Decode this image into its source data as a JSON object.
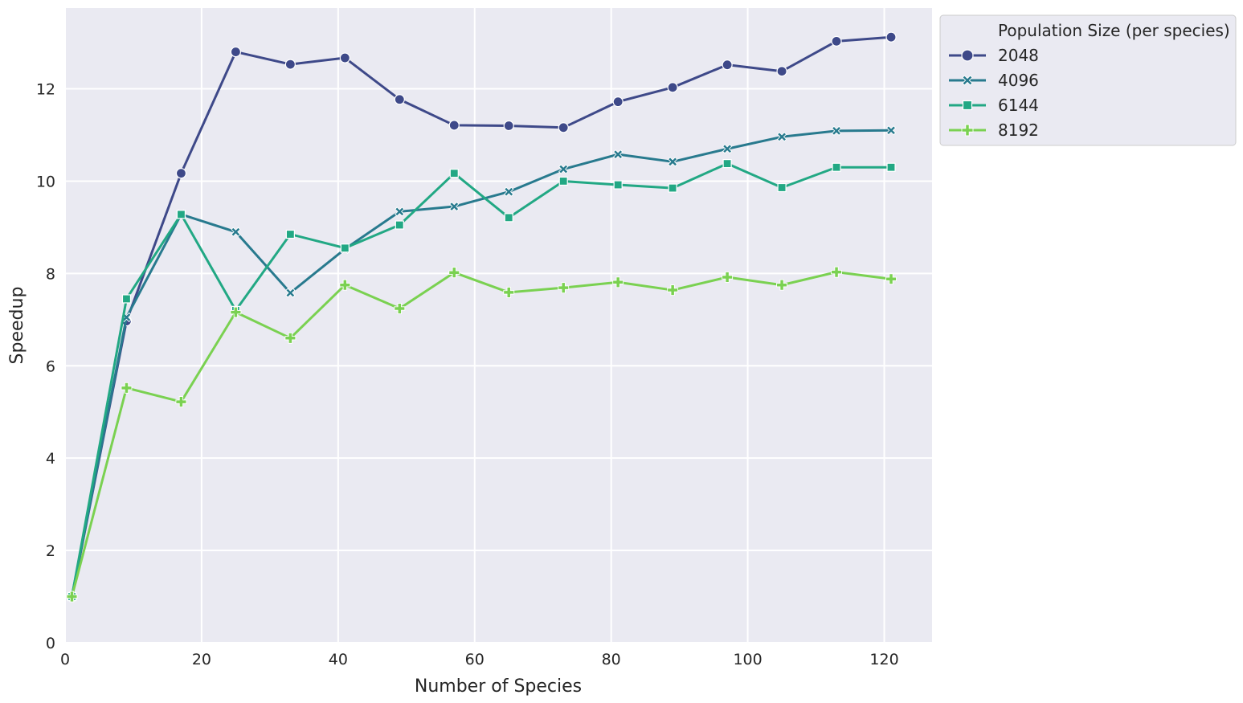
{
  "chart_data": {
    "type": "line",
    "title": "",
    "xlabel": "Number of Species",
    "ylabel": "Speedup",
    "xlim": [
      0,
      127
    ],
    "ylim": [
      0,
      13.75
    ],
    "x_ticks": [
      0,
      20,
      40,
      60,
      80,
      100,
      120
    ],
    "y_ticks": [
      0,
      2,
      4,
      6,
      8,
      10,
      12
    ],
    "grid": true,
    "legend": {
      "title": "Population Size (per species)",
      "placement": "outside-top-right"
    },
    "x": [
      1,
      9,
      17,
      25,
      33,
      41,
      49,
      57,
      65,
      73,
      81,
      89,
      97,
      105,
      113,
      121
    ],
    "series": [
      {
        "name": "2048",
        "color": "#3e4989",
        "marker": "circle",
        "values": [
          1.0,
          6.97,
          10.17,
          12.8,
          12.53,
          12.67,
          11.77,
          11.21,
          11.2,
          11.16,
          11.72,
          12.03,
          12.52,
          12.38,
          13.03,
          13.12
        ]
      },
      {
        "name": "4096",
        "color": "#287a8e",
        "marker": "x",
        "values": [
          1.0,
          7.05,
          9.28,
          8.9,
          7.58,
          8.53,
          9.34,
          9.45,
          9.77,
          10.26,
          10.58,
          10.42,
          10.7,
          10.96,
          11.09,
          11.1
        ]
      },
      {
        "name": "6144",
        "color": "#22a884",
        "marker": "square",
        "values": [
          1.0,
          7.45,
          9.28,
          7.2,
          8.85,
          8.55,
          9.05,
          10.17,
          9.21,
          10.0,
          9.92,
          9.85,
          10.38,
          9.86,
          10.3,
          10.3
        ]
      },
      {
        "name": "8192",
        "color": "#7ad151",
        "marker": "plus",
        "values": [
          1.0,
          5.52,
          5.22,
          7.16,
          6.6,
          7.75,
          7.24,
          8.02,
          7.59,
          7.69,
          7.81,
          7.64,
          7.92,
          7.75,
          8.03,
          7.88
        ]
      }
    ]
  }
}
